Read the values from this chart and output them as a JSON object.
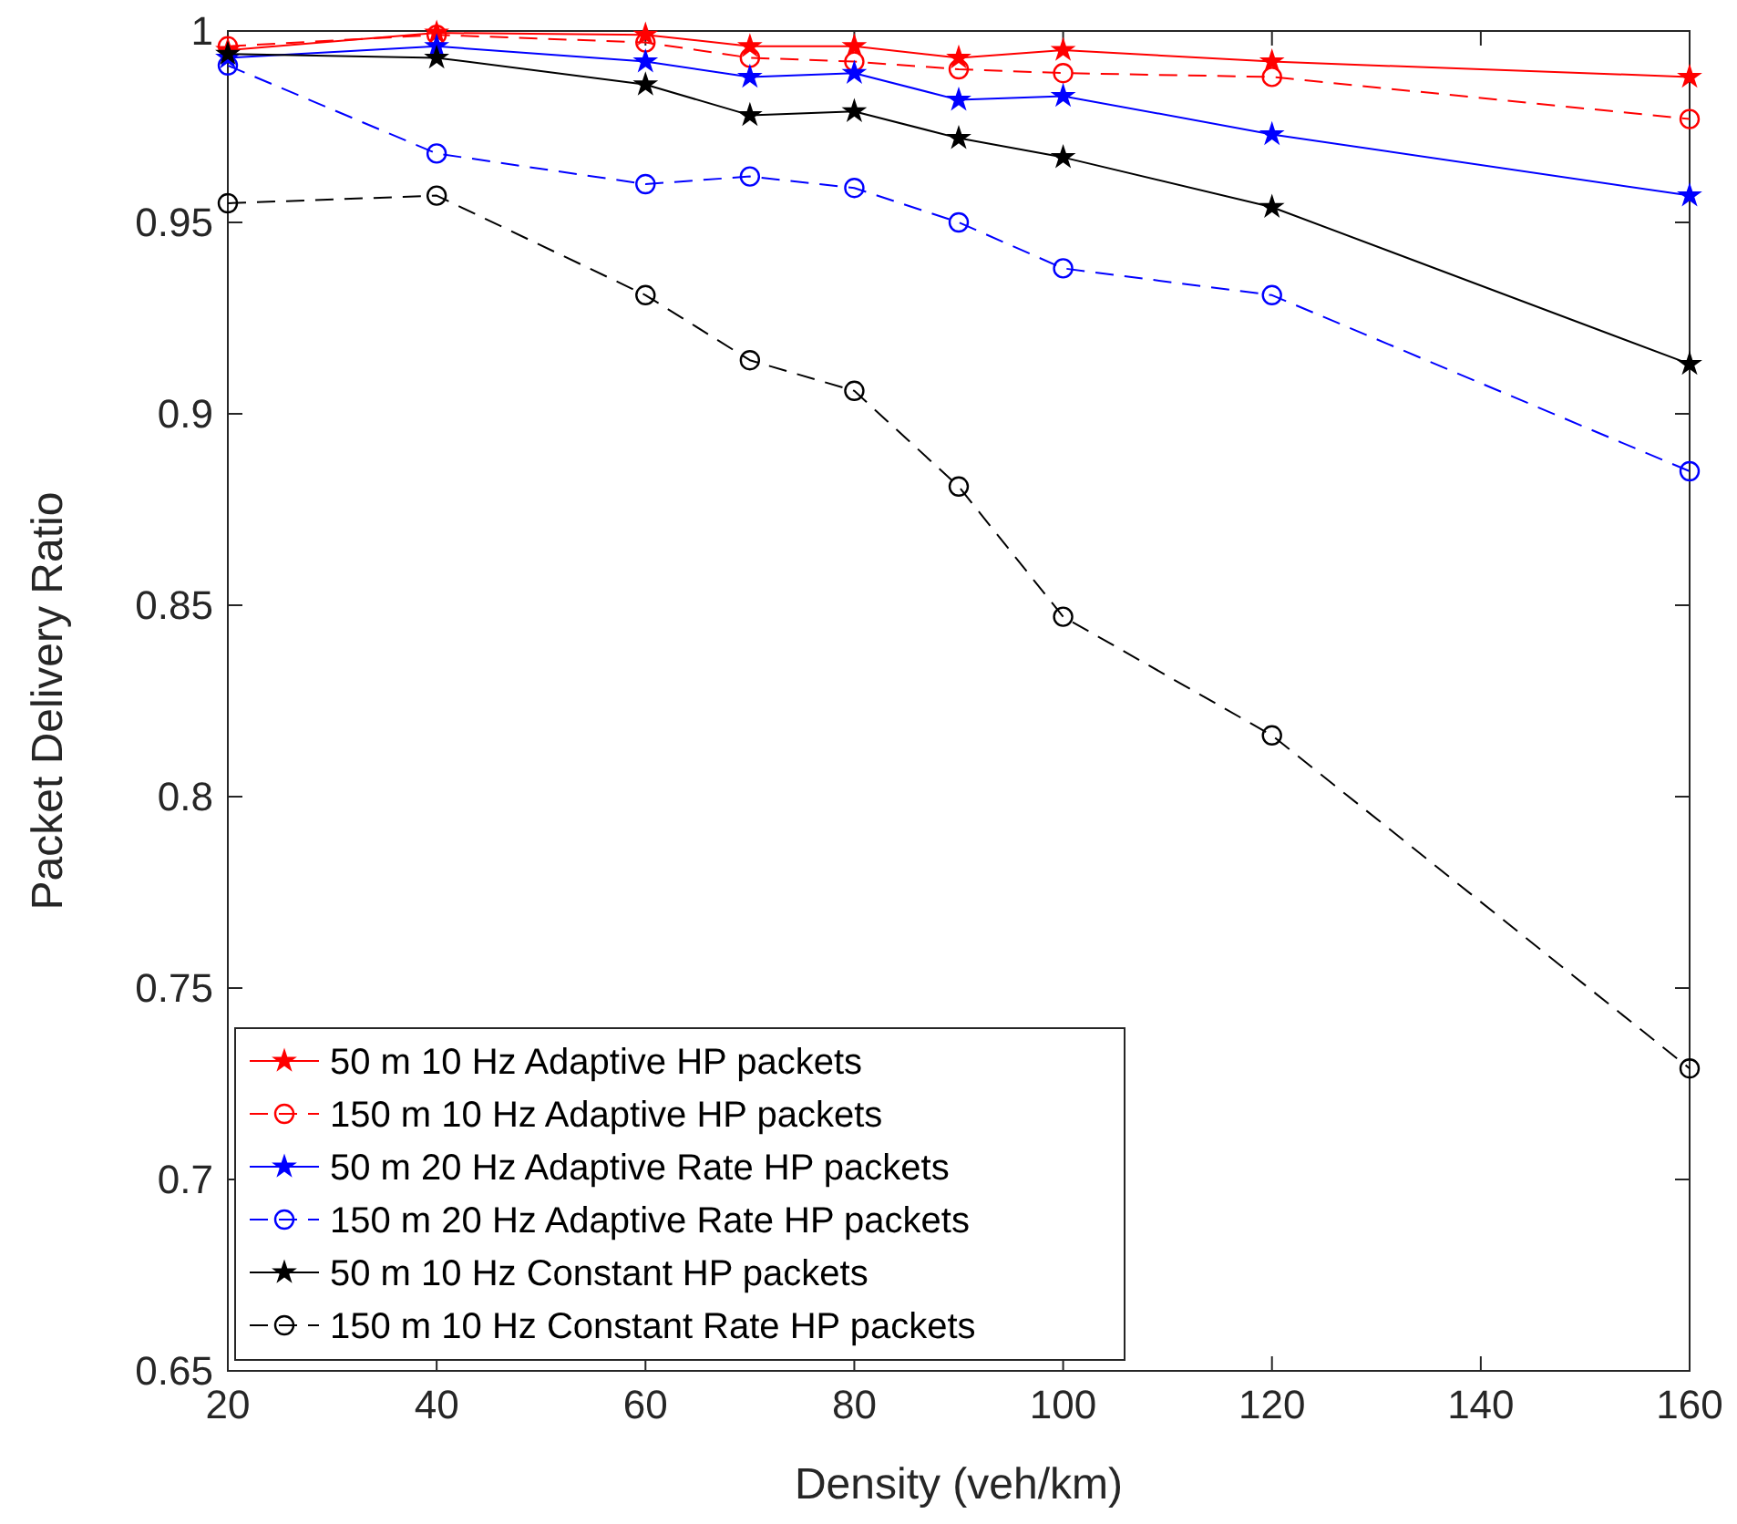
{
  "chart_data": {
    "type": "line",
    "xlabel": "Density (veh/km)",
    "ylabel": "Packet Delivery Ratio",
    "x": [
      20,
      40,
      60,
      70,
      80,
      90,
      100,
      120,
      160
    ],
    "xlim": [
      20,
      160
    ],
    "xticks": [
      20,
      40,
      60,
      80,
      100,
      120,
      140,
      160
    ],
    "ylim": [
      0.65,
      1
    ],
    "yticks": [
      0.65,
      0.7,
      0.75,
      0.8,
      0.85,
      0.9,
      0.95,
      1
    ],
    "grid": false,
    "legend": "bottom left",
    "series": [
      {
        "name": "50 m 10 Hz Adaptive HP packets",
        "color": "#ff0000",
        "marker": "star",
        "line_style": "solid",
        "values": [
          0.995,
          0.9995,
          0.999,
          0.996,
          0.996,
          0.993,
          0.995,
          0.992,
          0.988
        ]
      },
      {
        "name": "150 m 10 Hz Adaptive HP packets",
        "color": "#ff0000",
        "marker": "circle",
        "line_style": "dashed",
        "values": [
          0.996,
          0.999,
          0.997,
          0.993,
          0.992,
          0.99,
          0.989,
          0.988,
          0.977
        ]
      },
      {
        "name": "50 m 20 Hz Adaptive Rate HP packets",
        "color": "#0000ff",
        "marker": "star",
        "line_style": "solid",
        "values": [
          0.993,
          0.996,
          0.992,
          0.988,
          0.989,
          0.982,
          0.983,
          0.973,
          0.957
        ]
      },
      {
        "name": "150 m 20 Hz Adaptive Rate HP packets",
        "color": "#0000ff",
        "marker": "circle",
        "line_style": "dashed",
        "values": [
          0.991,
          0.968,
          0.96,
          0.962,
          0.959,
          0.95,
          0.938,
          0.931,
          0.885
        ]
      },
      {
        "name": "50 m 10 Hz Constant HP packets",
        "color": "#000000",
        "marker": "star",
        "line_style": "solid",
        "values": [
          0.994,
          0.993,
          0.986,
          0.978,
          0.979,
          0.972,
          0.967,
          0.954,
          0.913
        ]
      },
      {
        "name": "150 m 10 Hz Constant Rate HP packets",
        "color": "#000000",
        "marker": "circle",
        "line_style": "dashed",
        "values": [
          0.955,
          0.957,
          0.931,
          0.914,
          0.906,
          0.881,
          0.847,
          0.816,
          0.729
        ]
      }
    ]
  }
}
